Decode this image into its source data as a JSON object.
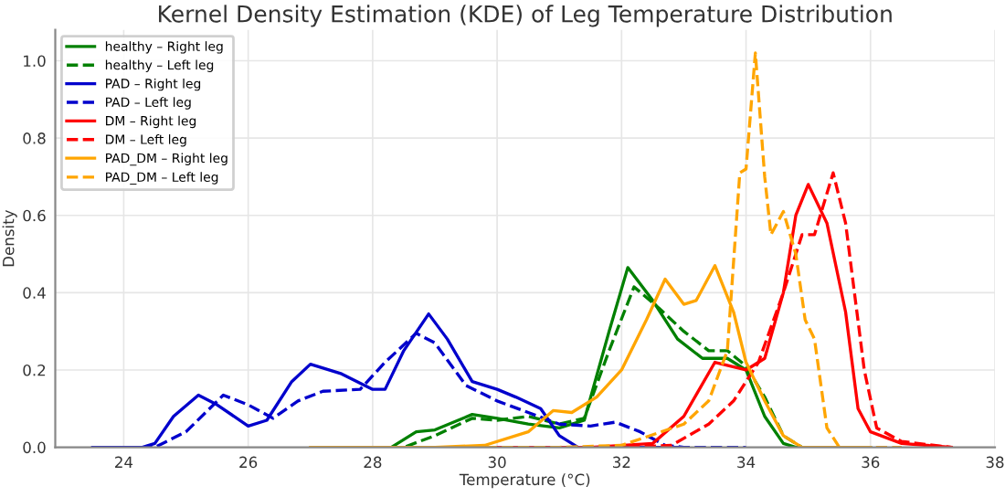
{
  "chart_data": {
    "type": "line",
    "title": "Kernel Density Estimation (KDE) of Leg Temperature Distribution",
    "xlabel": "Temperature (°C)",
    "ylabel": "Density",
    "xlim": [
      22.9,
      38
    ],
    "xticks": [
      24,
      26,
      28,
      30,
      32,
      34,
      36,
      38
    ],
    "ylim": [
      0,
      1.08
    ],
    "yticks": [
      {
        "value": 0,
        "label": "0.0"
      },
      {
        "value": 0.2,
        "label": "0.2"
      },
      {
        "value": 0.4,
        "label": "0.4"
      },
      {
        "value": 0.6,
        "label": "0.6"
      },
      {
        "value": 0.8,
        "label": "0.8"
      },
      {
        "value": 1.0,
        "label": "1.0"
      }
    ],
    "grid": true,
    "legend": "top left",
    "series": [
      {
        "name": "healthy – Right leg",
        "color": "#008000",
        "line_style": "solid",
        "x": [
          27.5,
          28.3,
          28.7,
          29.0,
          29.6,
          30.0,
          30.5,
          31.0,
          31.4,
          31.8,
          32.1,
          32.5,
          32.9,
          33.3,
          33.7,
          34.0,
          34.3,
          34.6,
          34.8,
          36
        ],
        "values": [
          0,
          0,
          0.04,
          0.045,
          0.085,
          0.075,
          0.06,
          0.05,
          0.07,
          0.3,
          0.465,
          0.38,
          0.28,
          0.23,
          0.23,
          0.2,
          0.08,
          0.01,
          0,
          0
        ]
      },
      {
        "name": "healthy – Left leg",
        "color": "#008000",
        "line_style": "dashed",
        "x": [
          27.5,
          28.5,
          29.0,
          29.6,
          30.0,
          30.5,
          31.0,
          31.4,
          31.8,
          32.2,
          32.6,
          33.0,
          33.4,
          33.7,
          34.0,
          34.3,
          34.6,
          34.9,
          36
        ],
        "values": [
          0,
          0,
          0.03,
          0.075,
          0.07,
          0.08,
          0.06,
          0.075,
          0.25,
          0.415,
          0.36,
          0.3,
          0.25,
          0.25,
          0.21,
          0.13,
          0.03,
          0,
          0
        ]
      },
      {
        "name": "PAD – Right leg",
        "color": "#0000cc",
        "line_style": "solid",
        "x": [
          23.5,
          24.3,
          24.5,
          24.8,
          25.2,
          25.5,
          26.0,
          26.3,
          26.7,
          27.0,
          27.5,
          28.0,
          28.2,
          28.5,
          28.9,
          29.2,
          29.6,
          30.0,
          30.3,
          30.7,
          31.0,
          31.3,
          33
        ],
        "values": [
          0,
          0,
          0.01,
          0.08,
          0.135,
          0.11,
          0.055,
          0.07,
          0.17,
          0.215,
          0.19,
          0.15,
          0.15,
          0.25,
          0.345,
          0.28,
          0.17,
          0.15,
          0.13,
          0.1,
          0.03,
          0,
          0
        ]
      },
      {
        "name": "PAD – Left leg",
        "color": "#0000cc",
        "line_style": "dashed",
        "x": [
          23.5,
          24.5,
          25.0,
          25.6,
          26.0,
          26.4,
          26.8,
          27.2,
          27.8,
          28.2,
          28.7,
          29.0,
          29.5,
          30.0,
          30.5,
          31.0,
          31.5,
          31.9,
          32.3,
          32.7,
          33.0,
          34
        ],
        "values": [
          0,
          0,
          0.04,
          0.135,
          0.11,
          0.075,
          0.12,
          0.145,
          0.15,
          0.22,
          0.295,
          0.27,
          0.16,
          0.12,
          0.09,
          0.06,
          0.055,
          0.065,
          0.04,
          0.005,
          0,
          0
        ]
      },
      {
        "name": "DM – Right leg",
        "color": "#ff0000",
        "line_style": "solid",
        "x": [
          29,
          31.5,
          32.5,
          33.0,
          33.5,
          34.0,
          34.3,
          34.6,
          34.8,
          35.0,
          35.3,
          35.6,
          35.8,
          36.0,
          36.5,
          37.3
        ],
        "values": [
          0,
          0,
          0.01,
          0.08,
          0.22,
          0.2,
          0.23,
          0.4,
          0.6,
          0.68,
          0.58,
          0.35,
          0.1,
          0.04,
          0.01,
          0
        ]
      },
      {
        "name": "DM – Left leg",
        "color": "#ff0000",
        "line_style": "dashed",
        "x": [
          29,
          32,
          32.8,
          33.4,
          33.8,
          34.2,
          34.6,
          34.9,
          35.1,
          35.4,
          35.6,
          35.9,
          36.1,
          36.5,
          37.3
        ],
        "values": [
          0,
          0,
          0.005,
          0.06,
          0.12,
          0.22,
          0.4,
          0.55,
          0.55,
          0.71,
          0.58,
          0.2,
          0.05,
          0.015,
          0
        ]
      },
      {
        "name": "PAD_DM – Right leg",
        "color": "#ffa500",
        "line_style": "solid",
        "x": [
          27,
          29,
          29.8,
          30.5,
          30.9,
          31.2,
          31.6,
          32.0,
          32.4,
          32.7,
          33.0,
          33.2,
          33.5,
          33.8,
          34.0,
          34.3,
          34.6,
          34.9,
          36
        ],
        "values": [
          0,
          0,
          0.005,
          0.04,
          0.095,
          0.09,
          0.13,
          0.2,
          0.33,
          0.435,
          0.37,
          0.38,
          0.47,
          0.35,
          0.22,
          0.12,
          0.03,
          0,
          0
        ]
      },
      {
        "name": "PAD_DM – Left leg",
        "color": "#ffa500",
        "line_style": "dashed",
        "x": [
          28,
          31,
          32,
          33.0,
          33.4,
          33.7,
          33.9,
          34.0,
          34.15,
          34.3,
          34.4,
          34.6,
          34.8,
          34.95,
          35.1,
          35.3,
          35.5,
          36.5
        ],
        "values": [
          0,
          0,
          0.005,
          0.06,
          0.12,
          0.25,
          0.71,
          0.72,
          1.02,
          0.7,
          0.55,
          0.61,
          0.5,
          0.33,
          0.28,
          0.05,
          0,
          0
        ]
      }
    ]
  }
}
